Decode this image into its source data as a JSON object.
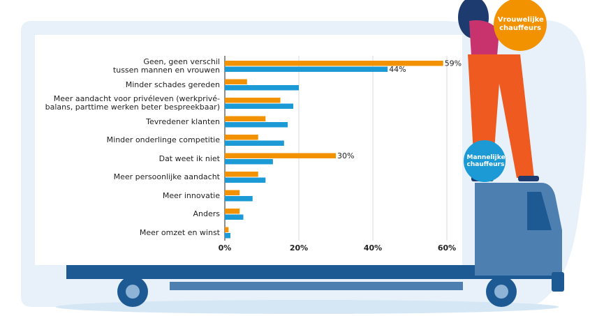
{
  "chart_data": {
    "type": "hbar",
    "categories": [
      "Geen, geen verschil\ntussen mannen en vrouwen",
      "Minder schades gereden",
      "Meer aandacht voor privéleven (werkprivé-\nbalans, parttime werken beter bespreekbaar)",
      "Tevredener klanten",
      "Minder onderlinge competitie",
      "Dat weet ik niet",
      "Meer persoonlijke aandacht",
      "Meer innovatie",
      "Anders",
      "Meer omzet en winst"
    ],
    "series": [
      {
        "name": "Vrouwelijke chauffeurs",
        "color": "#f39200",
        "values": [
          59,
          6,
          15,
          11,
          9,
          30,
          9,
          4,
          4,
          1
        ],
        "value_labels": [
          "59%",
          null,
          null,
          null,
          null,
          "30%",
          null,
          null,
          null,
          null
        ]
      },
      {
        "name": "Mannelijke chauffeurs",
        "color": "#1b9ad6",
        "values": [
          44,
          20,
          18.5,
          17,
          16,
          13,
          11,
          7.5,
          5,
          1.5
        ],
        "value_labels": [
          "44%",
          null,
          null,
          null,
          null,
          null,
          null,
          null,
          null,
          null
        ]
      }
    ],
    "xlim": [
      0,
      60
    ],
    "xticks": [
      {
        "value": 0,
        "label": "0%"
      },
      {
        "value": 20,
        "label": "20%"
      },
      {
        "value": 40,
        "label": "40%"
      },
      {
        "value": 60,
        "label": "60%"
      }
    ],
    "grid": true
  }
}
